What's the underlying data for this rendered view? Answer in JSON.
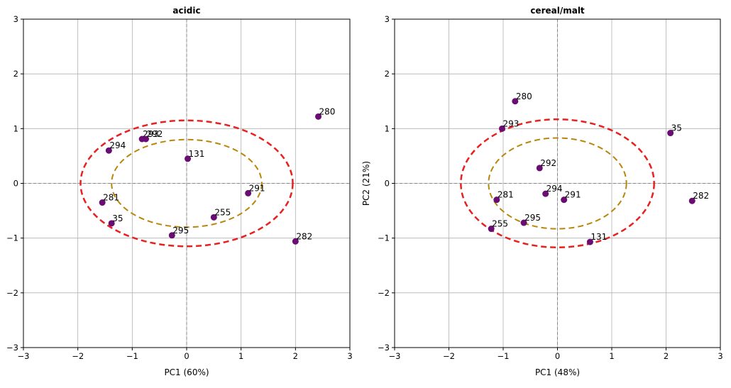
{
  "chart_data": [
    {
      "type": "scatter",
      "title": "acidic",
      "xlabel": "PC1 (60%)",
      "ylabel": "",
      "xlim": [
        -3,
        3
      ],
      "ylim": [
        -3,
        3
      ],
      "xticks": [
        "−3",
        "−2",
        "−1",
        "0",
        "1",
        "2",
        "3"
      ],
      "yticks": [
        "−3",
        "−2",
        "−1",
        "0",
        "1",
        "2",
        "3"
      ],
      "grid": true,
      "point_color": "#6a0d73",
      "points": [
        {
          "label": "280",
          "x": 2.42,
          "y": 1.22
        },
        {
          "label": "294",
          "x": -1.43,
          "y": 0.6
        },
        {
          "label": "293",
          "x": -0.82,
          "y": 0.81
        },
        {
          "label": "292",
          "x": -0.75,
          "y": 0.81
        },
        {
          "label": "131",
          "x": 0.02,
          "y": 0.45
        },
        {
          "label": "291",
          "x": 1.13,
          "y": -0.18
        },
        {
          "label": "281",
          "x": -1.55,
          "y": -0.35
        },
        {
          "label": "35",
          "x": -1.38,
          "y": -0.73
        },
        {
          "label": "255",
          "x": 0.5,
          "y": -0.62
        },
        {
          "label": "295",
          "x": -0.27,
          "y": -0.95
        },
        {
          "label": "282",
          "x": 2.0,
          "y": -1.06
        }
      ],
      "ellipses": [
        {
          "color": "#e82020",
          "cx": 0,
          "cy": 0,
          "rx": 1.95,
          "ry": 1.15
        },
        {
          "color": "#b8860b",
          "cx": 0,
          "cy": 0,
          "rx": 1.38,
          "ry": 0.8
        }
      ]
    },
    {
      "type": "scatter",
      "title": "cereal/malt",
      "xlabel": "PC1 (48%)",
      "ylabel": "PC2 (21%)",
      "xlim": [
        -3,
        3
      ],
      "ylim": [
        -3,
        3
      ],
      "xticks": [
        "−3",
        "−2",
        "−1",
        "0",
        "1",
        "2",
        "3"
      ],
      "yticks": [
        "−3",
        "−2",
        "−1",
        "0",
        "1",
        "2",
        "3"
      ],
      "grid": true,
      "point_color": "#6a0d73",
      "points": [
        {
          "label": "280",
          "x": -0.78,
          "y": 1.5
        },
        {
          "label": "293",
          "x": -1.02,
          "y": 1.0
        },
        {
          "label": "35",
          "x": 2.08,
          "y": 0.92
        },
        {
          "label": "292",
          "x": -0.33,
          "y": 0.28
        },
        {
          "label": "294",
          "x": -0.22,
          "y": -0.19
        },
        {
          "label": "291",
          "x": 0.12,
          "y": -0.3
        },
        {
          "label": "281",
          "x": -1.12,
          "y": -0.3
        },
        {
          "label": "282",
          "x": 2.48,
          "y": -0.32
        },
        {
          "label": "295",
          "x": -0.62,
          "y": -0.72
        },
        {
          "label": "255",
          "x": -1.22,
          "y": -0.83
        },
        {
          "label": "131",
          "x": 0.6,
          "y": -1.07
        }
      ],
      "ellipses": [
        {
          "color": "#e82020",
          "cx": 0,
          "cy": 0,
          "rx": 1.78,
          "ry": 1.17
        },
        {
          "color": "#b8860b",
          "cx": 0,
          "cy": 0,
          "rx": 1.27,
          "ry": 0.83
        }
      ]
    }
  ]
}
